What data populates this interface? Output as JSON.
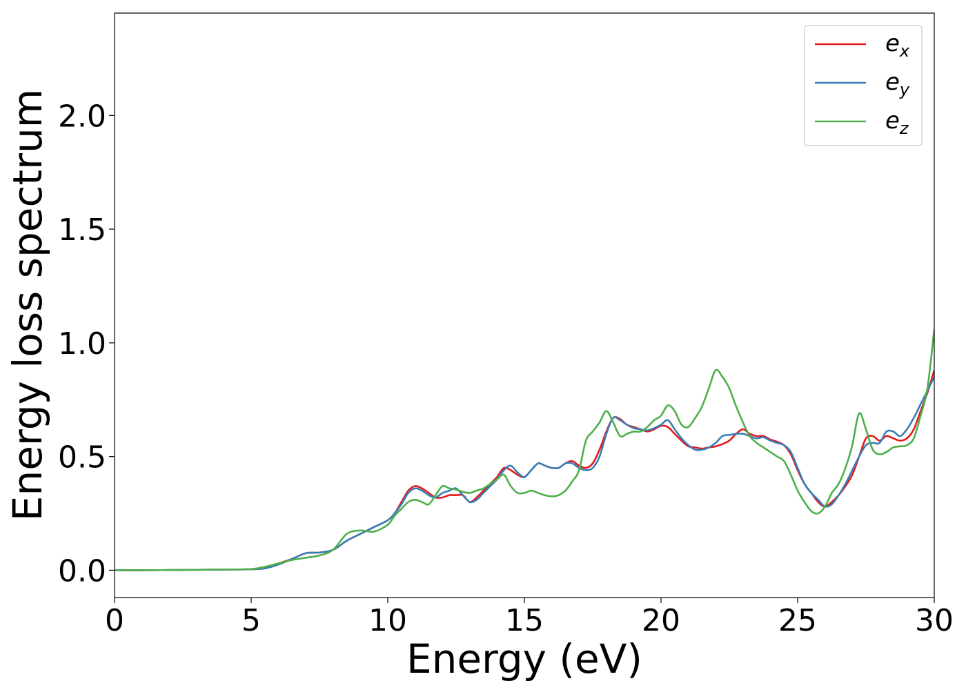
{
  "chart_data": {
    "type": "line",
    "title": "",
    "xlabel": "Energy (eV)",
    "ylabel": "Energy loss spectrum",
    "xlim": [
      0,
      30
    ],
    "ylim": [
      -0.12,
      2.45
    ],
    "xticks": [
      0,
      5,
      10,
      15,
      20,
      25,
      30
    ],
    "xtick_labels": [
      "0",
      "5",
      "10",
      "15",
      "20",
      "25",
      "30"
    ],
    "yticks": [
      0.0,
      0.5,
      1.0,
      1.5,
      2.0
    ],
    "ytick_labels": [
      "0.0",
      "0.5",
      "1.0",
      "1.5",
      "2.0"
    ],
    "grid": false,
    "legend_position": "top-right",
    "x": [
      0,
      1,
      2,
      3,
      4,
      5,
      5.5,
      6,
      6.5,
      7,
      7.5,
      8,
      8.5,
      9,
      9.5,
      10,
      10.25,
      10.5,
      10.75,
      11,
      11.25,
      11.5,
      11.75,
      12,
      12.25,
      12.5,
      12.75,
      13,
      13.25,
      13.5,
      13.75,
      14,
      14.25,
      14.5,
      14.75,
      15,
      15.25,
      15.5,
      15.75,
      16,
      16.25,
      16.5,
      16.75,
      17,
      17.25,
      17.5,
      17.75,
      18,
      18.25,
      18.5,
      18.75,
      19,
      19.25,
      19.5,
      19.75,
      20,
      20.25,
      20.5,
      20.75,
      21,
      21.25,
      21.5,
      21.75,
      22,
      22.25,
      22.5,
      22.75,
      23,
      23.25,
      23.5,
      23.75,
      24,
      24.25,
      24.5,
      24.75,
      25,
      25.25,
      25.5,
      25.75,
      26,
      26.25,
      26.5,
      26.75,
      27,
      27.25,
      27.5,
      27.75,
      28,
      28.25,
      28.5,
      28.75,
      29,
      29.25,
      29.5,
      29.75,
      30
    ],
    "series": [
      {
        "name": "e",
        "subscript": "x",
        "color": "#e41a1c",
        "values": [
          0,
          0,
          0.001,
          0.002,
          0.003,
          0.005,
          0.012,
          0.03,
          0.05,
          0.075,
          0.078,
          0.09,
          0.13,
          0.16,
          0.19,
          0.22,
          0.25,
          0.3,
          0.35,
          0.37,
          0.36,
          0.34,
          0.32,
          0.32,
          0.33,
          0.33,
          0.33,
          0.3,
          0.32,
          0.35,
          0.38,
          0.41,
          0.45,
          0.44,
          0.42,
          0.41,
          0.44,
          0.47,
          0.46,
          0.45,
          0.45,
          0.47,
          0.48,
          0.46,
          0.45,
          0.47,
          0.53,
          0.61,
          0.67,
          0.665,
          0.64,
          0.63,
          0.62,
          0.61,
          0.62,
          0.635,
          0.63,
          0.6,
          0.57,
          0.545,
          0.54,
          0.535,
          0.54,
          0.545,
          0.555,
          0.57,
          0.6,
          0.62,
          0.6,
          0.59,
          0.59,
          0.575,
          0.565,
          0.55,
          0.51,
          0.44,
          0.38,
          0.34,
          0.3,
          0.28,
          0.3,
          0.33,
          0.37,
          0.42,
          0.5,
          0.58,
          0.59,
          0.57,
          0.59,
          0.58,
          0.57,
          0.58,
          0.62,
          0.7,
          0.78,
          0.88
        ]
      },
      {
        "name": "e",
        "subscript": "y",
        "color": "#377eb8",
        "values": [
          0,
          0,
          0.001,
          0.002,
          0.003,
          0.004,
          0.008,
          0.025,
          0.05,
          0.075,
          0.078,
          0.09,
          0.13,
          0.16,
          0.19,
          0.22,
          0.25,
          0.29,
          0.34,
          0.36,
          0.35,
          0.33,
          0.32,
          0.34,
          0.35,
          0.36,
          0.33,
          0.3,
          0.31,
          0.34,
          0.37,
          0.4,
          0.44,
          0.46,
          0.43,
          0.41,
          0.44,
          0.47,
          0.46,
          0.45,
          0.45,
          0.47,
          0.47,
          0.45,
          0.44,
          0.45,
          0.5,
          0.6,
          0.67,
          0.66,
          0.64,
          0.625,
          0.62,
          0.615,
          0.625,
          0.64,
          0.66,
          0.62,
          0.58,
          0.55,
          0.53,
          0.53,
          0.54,
          0.56,
          0.59,
          0.595,
          0.6,
          0.6,
          0.59,
          0.58,
          0.585,
          0.57,
          0.56,
          0.55,
          0.52,
          0.45,
          0.38,
          0.34,
          0.31,
          0.28,
          0.29,
          0.33,
          0.38,
          0.44,
          0.5,
          0.55,
          0.56,
          0.56,
          0.61,
          0.61,
          0.59,
          0.62,
          0.67,
          0.73,
          0.79,
          0.85
        ]
      },
      {
        "name": "e",
        "subscript": "z",
        "color": "#4daf4a",
        "values": [
          0,
          0,
          0.001,
          0.002,
          0.003,
          0.005,
          0.015,
          0.03,
          0.045,
          0.055,
          0.065,
          0.09,
          0.16,
          0.175,
          0.17,
          0.2,
          0.24,
          0.27,
          0.3,
          0.31,
          0.3,
          0.29,
          0.33,
          0.37,
          0.36,
          0.355,
          0.345,
          0.34,
          0.35,
          0.36,
          0.38,
          0.4,
          0.42,
          0.37,
          0.34,
          0.34,
          0.35,
          0.34,
          0.33,
          0.325,
          0.33,
          0.35,
          0.39,
          0.44,
          0.57,
          0.61,
          0.65,
          0.7,
          0.65,
          0.59,
          0.6,
          0.61,
          0.61,
          0.63,
          0.66,
          0.68,
          0.725,
          0.7,
          0.64,
          0.63,
          0.67,
          0.72,
          0.8,
          0.88,
          0.85,
          0.8,
          0.72,
          0.65,
          0.59,
          0.56,
          0.54,
          0.52,
          0.5,
          0.48,
          0.42,
          0.35,
          0.3,
          0.26,
          0.25,
          0.28,
          0.34,
          0.38,
          0.45,
          0.55,
          0.69,
          0.62,
          0.53,
          0.51,
          0.52,
          0.54,
          0.545,
          0.55,
          0.58,
          0.68,
          0.8,
          1.06
        ]
      }
    ]
  }
}
